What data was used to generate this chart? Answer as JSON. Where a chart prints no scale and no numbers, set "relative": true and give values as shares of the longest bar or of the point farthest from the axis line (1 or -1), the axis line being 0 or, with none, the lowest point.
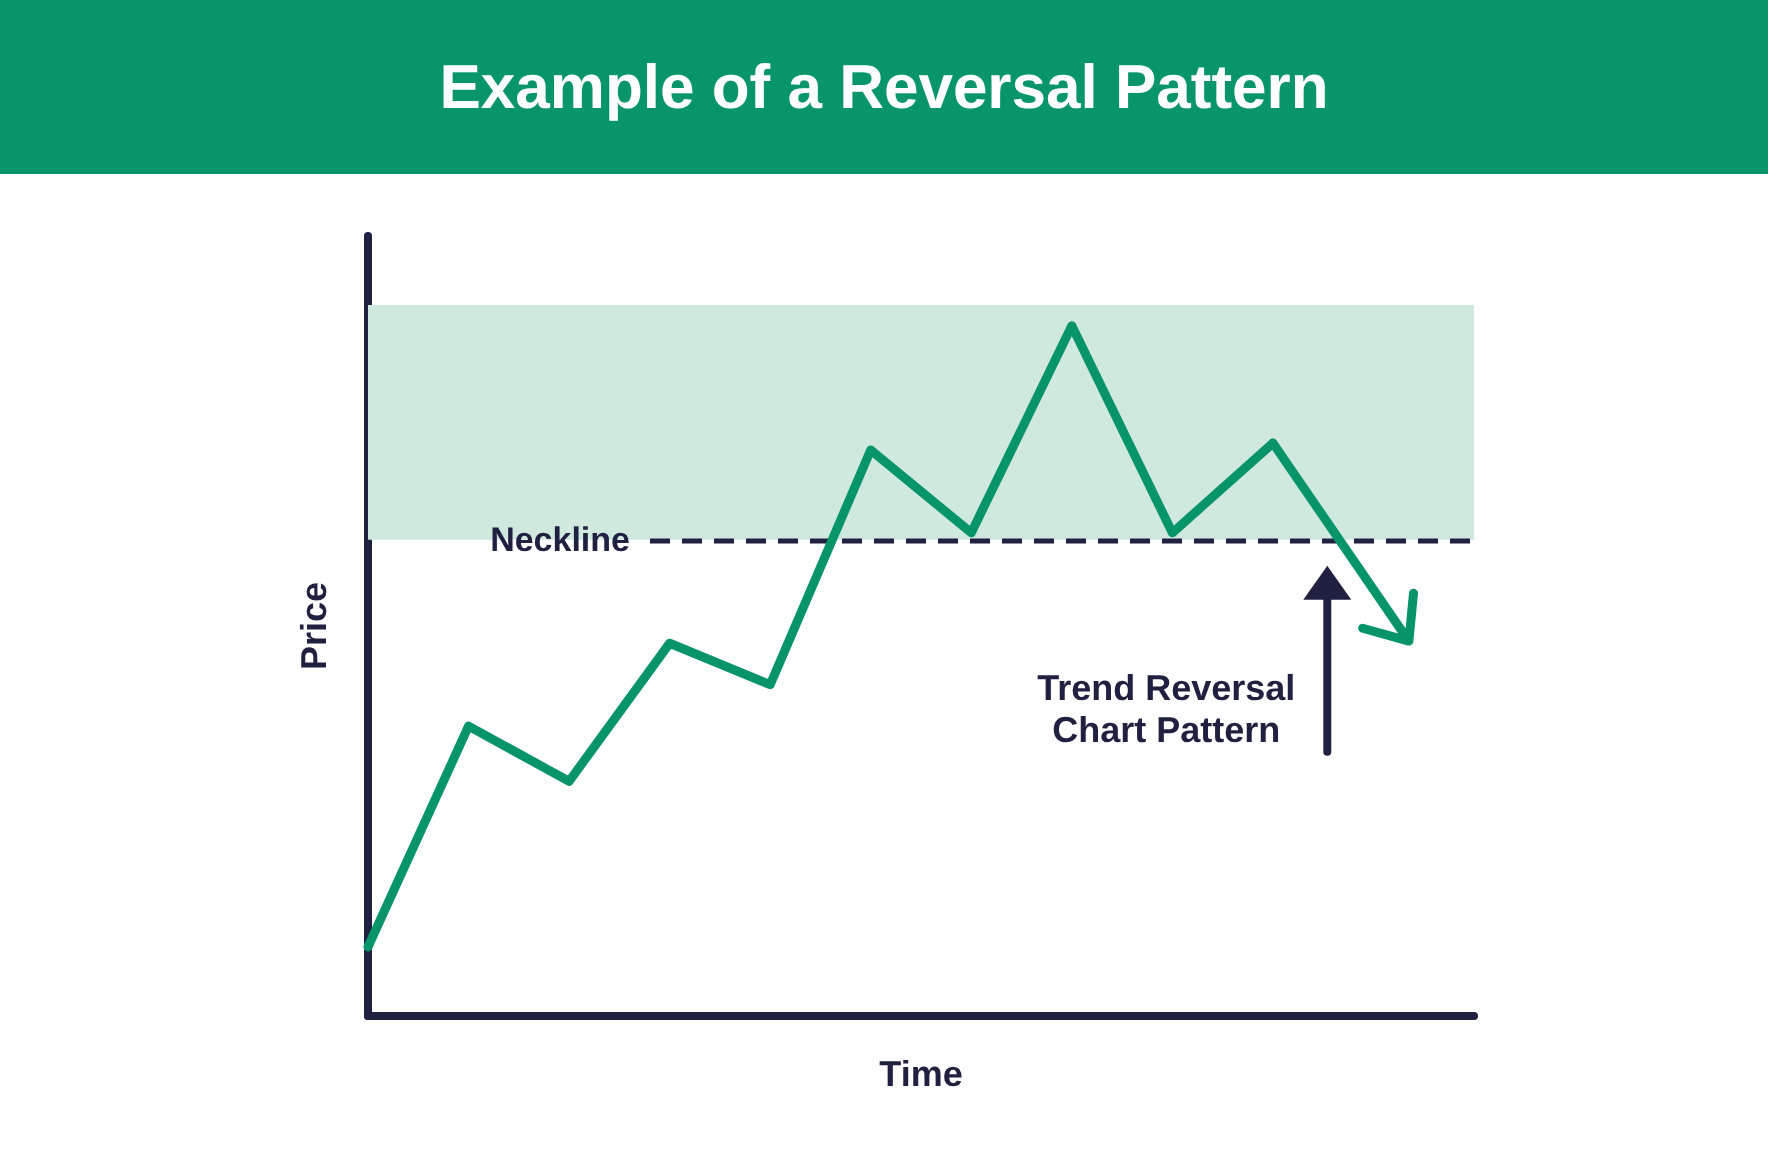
{
  "chart_data": {
    "type": "line",
    "title": "Example of a Reversal Pattern",
    "xlabel": "Time",
    "ylabel": "Price",
    "relative": true,
    "categories": [
      null,
      null,
      null,
      null,
      null,
      null,
      null,
      null,
      null,
      null,
      null,
      null
    ],
    "values": [
      0.1,
      0.42,
      0.34,
      0.54,
      0.48,
      0.82,
      0.7,
      1,
      0.7,
      0.83,
      null,
      null
    ],
    "color": "#079469",
    "marker": "none",
    "ref_lines": [
      {
        "axis": "y",
        "value": 0.69,
        "label": "Neckline",
        "line_style": "dashed",
        "color": "#202040"
      }
    ],
    "bands": [
      {
        "axis": "y",
        "from": 0.69,
        "to": 1.03,
        "color": "#cfe9df"
      }
    ],
    "annotations": [
      "Trend Reversal\nChart Pattern"
    ]
  }
}
